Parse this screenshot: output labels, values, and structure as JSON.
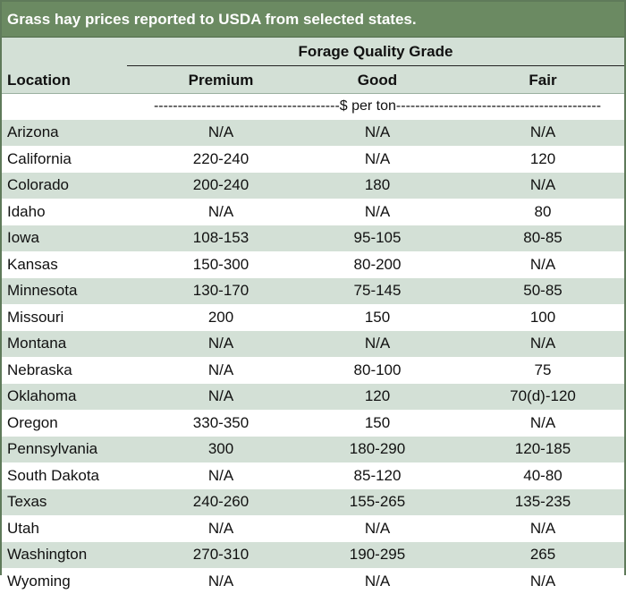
{
  "title": "Grass hay prices reported to USDA from selected states.",
  "header": {
    "group_label": "Forage Quality Grade",
    "location_label": "Location",
    "premium_label": "Premium",
    "good_label": "Good",
    "fair_label": "Fair"
  },
  "units": "---------------------------------------$ per ton-------------------------------------------",
  "rows": [
    {
      "location": "Arizona",
      "premium": "N/A",
      "good": "N/A",
      "fair": "N/A"
    },
    {
      "location": "California",
      "premium": "220-240",
      "good": "N/A",
      "fair": "120"
    },
    {
      "location": "Colorado",
      "premium": "200-240",
      "good": "180",
      "fair": "N/A"
    },
    {
      "location": "Idaho",
      "premium": "N/A",
      "good": "N/A",
      "fair": "80"
    },
    {
      "location": "Iowa",
      "premium": "108-153",
      "good": "95-105",
      "fair": "80-85"
    },
    {
      "location": "Kansas",
      "premium": "150-300",
      "good": "80-200",
      "fair": "N/A"
    },
    {
      "location": "Minnesota",
      "premium": "130-170",
      "good": "75-145",
      "fair": "50-85"
    },
    {
      "location": "Missouri",
      "premium": "200",
      "good": "150",
      "fair": "100"
    },
    {
      "location": "Montana",
      "premium": "N/A",
      "good": "N/A",
      "fair": "N/A"
    },
    {
      "location": "Nebraska",
      "premium": "N/A",
      "good": "80-100",
      "fair": "75"
    },
    {
      "location": "Oklahoma",
      "premium": "N/A",
      "good": "120",
      "fair": "70(d)-120"
    },
    {
      "location": "Oregon",
      "premium": "330-350",
      "good": "150",
      "fair": "N/A"
    },
    {
      "location": "Pennsylvania",
      "premium": "300",
      "good": "180-290",
      "fair": "120-185"
    },
    {
      "location": "South Dakota",
      "premium": "N/A",
      "good": "85-120",
      "fair": "40-80"
    },
    {
      "location": "Texas",
      "premium": "240-260",
      "good": "155-265",
      "fair": "135-235"
    },
    {
      "location": "Utah",
      "premium": "N/A",
      "good": "N/A",
      "fair": "N/A"
    },
    {
      "location": "Washington",
      "premium": "270-310",
      "good": "190-295",
      "fair": "265"
    },
    {
      "location": "Wyoming",
      "premium": "N/A",
      "good": "N/A",
      "fair": "N/A"
    }
  ],
  "colors": {
    "title_bg": "#6b8a62",
    "shaded_row": "#d3e0d6"
  }
}
